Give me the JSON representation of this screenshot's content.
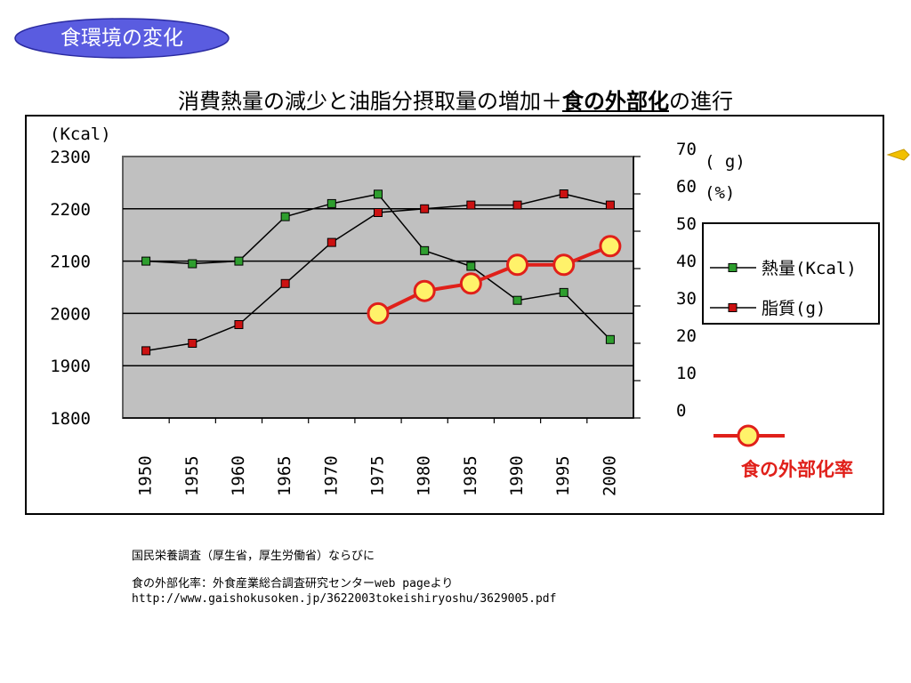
{
  "slide": {
    "badge": "食環境の変化",
    "title_pre": "消費熱量の減少と油脂分摂取量の増加＋",
    "title_emph": "食の外部化",
    "title_post": "の進行"
  },
  "chart_data": {
    "type": "line",
    "categories": [
      "1950",
      "1955",
      "1960",
      "1965",
      "1970",
      "1975",
      "1980",
      "1985",
      "1990",
      "1995",
      "2000"
    ],
    "left_axis": {
      "unit_label": "(Kcal)",
      "ylim": [
        1800,
        2300
      ],
      "ticks": [
        "2300",
        "2200",
        "2100",
        "2000",
        "1900",
        "1800"
      ]
    },
    "right_axis": {
      "unit_label_1": "( g)",
      "unit_label_2": "(%)",
      "ylim": [
        0,
        70
      ],
      "ticks": [
        "70",
        "60",
        "50",
        "40",
        "30",
        "20",
        "10",
        "0"
      ]
    },
    "series": [
      {
        "name": "熱量(Kcal)",
        "axis": "left",
        "color": "#2e9e2e",
        "values": [
          2100,
          2095,
          2100,
          2185,
          2210,
          2228,
          2120,
          2090,
          2025,
          2040,
          1950
        ]
      },
      {
        "name": "脂質(g)",
        "axis": "right",
        "color": "#cc1111",
        "values": [
          18,
          20,
          25,
          36,
          47,
          55,
          56,
          57,
          57,
          60,
          57
        ]
      },
      {
        "name": "食の外部化率",
        "axis": "right",
        "color": "#e0201a",
        "marker_fill": "#fff26a",
        "x": [
          "1975",
          "1980",
          "1985",
          "1990",
          "1995",
          "2000"
        ],
        "values": [
          28,
          34,
          36,
          41,
          41,
          46
        ]
      }
    ],
    "grid": true,
    "plot_background": "#c0c0c0"
  },
  "notes": {
    "line1": "国民栄養調査（厚生省，厚生労働省）ならびに",
    "line2": "食の外部化率：外食産業総合調査研究センターweb pageより",
    "line3": "http://www.gaishokusoken.jp/3622003tokeishiryoshu/3629005.pdf"
  }
}
